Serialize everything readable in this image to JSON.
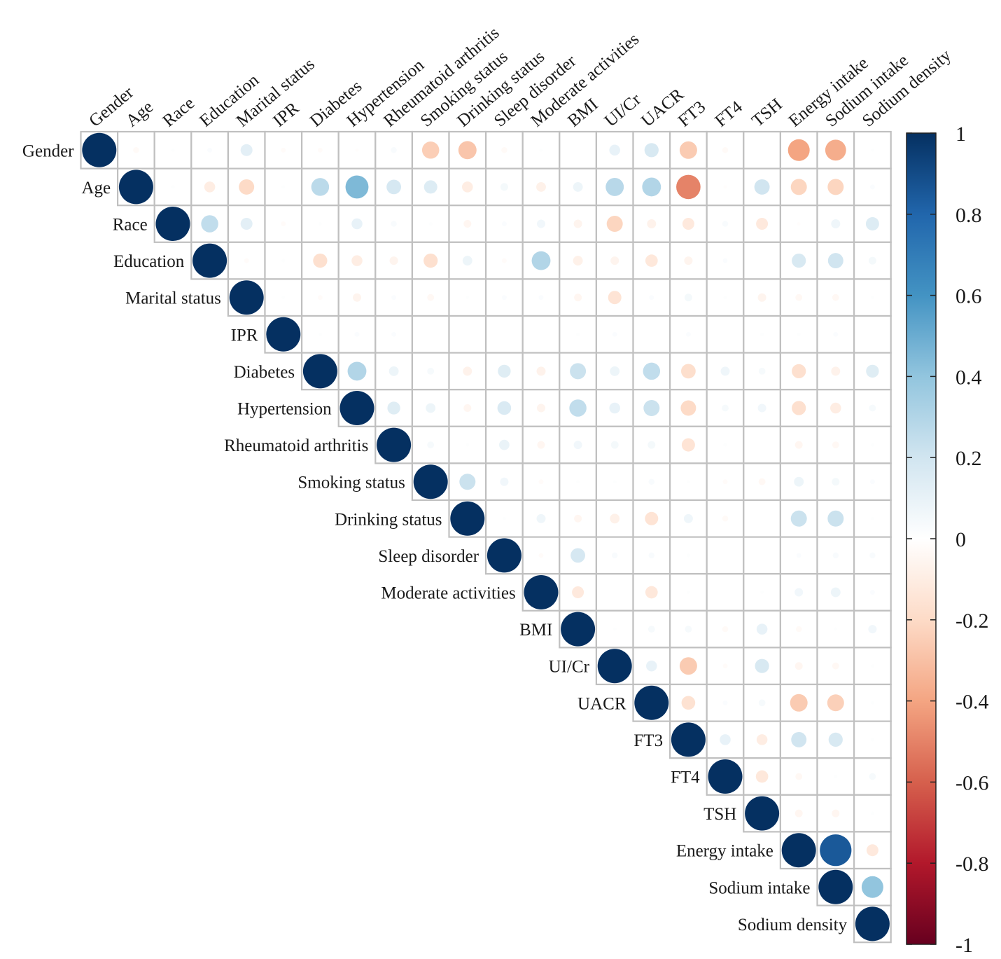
{
  "chart_data": {
    "type": "correlation-matrix",
    "shape": "upper-triangle-circles",
    "variables": [
      "Gender",
      "Age",
      "Race",
      "Education",
      "Marital status",
      "IPR",
      "Diabetes",
      "Hypertension",
      "Rheumatoid arthritis",
      "Smoking status",
      "Drinking status",
      "Sleep disorder",
      "Moderate activities",
      "BMI",
      "UI/Cr",
      "UACR",
      "FT3",
      "FT4",
      "TSH",
      "Energy intake",
      "Sodium intake",
      "Sodium density"
    ],
    "matrix": [
      [
        1,
        -0.03,
        0.01,
        0.02,
        0.12,
        -0.02,
        -0.02,
        -0.01,
        0.03,
        -0.25,
        -0.28,
        -0.03,
        0.01,
        0,
        0.1,
        0.17,
        -0.26,
        -0.03,
        0,
        -0.4,
        -0.37,
        0.01
      ],
      [
        -0.03,
        1,
        0.01,
        -0.1,
        -0.2,
        0.01,
        0.27,
        0.45,
        0.18,
        0.15,
        -0.1,
        0.05,
        -0.08,
        0.08,
        0.28,
        0.3,
        -0.5,
        -0.01,
        0.2,
        -0.22,
        -0.22,
        0.02
      ],
      [
        0.01,
        0.01,
        1,
        0.25,
        0.12,
        -0.02,
        0.01,
        0.1,
        0.03,
        0.01,
        -0.05,
        0.02,
        0.06,
        -0.06,
        -0.22,
        -0.07,
        -0.12,
        0.03,
        -0.12,
        -0.01,
        0.07,
        0.15
      ],
      [
        0.02,
        -0.1,
        0.25,
        1,
        -0.02,
        0.01,
        -0.17,
        -0.1,
        -0.06,
        -0.17,
        0.08,
        -0.02,
        0.3,
        -0.08,
        -0.06,
        -0.13,
        -0.06,
        0.02,
        0,
        0.17,
        0.2,
        0.05
      ],
      [
        0.12,
        -0.2,
        0.12,
        -0.02,
        1,
        0.01,
        -0.02,
        -0.06,
        0.02,
        -0.04,
        0.01,
        0.02,
        0.02,
        -0.05,
        -0.15,
        0.02,
        0.05,
        0.01,
        -0.06,
        -0.04,
        -0.04,
        0.01
      ],
      [
        -0.02,
        0.01,
        -0.02,
        0.01,
        0.01,
        1,
        0.01,
        0.02,
        0.02,
        0,
        0,
        0,
        0,
        0.01,
        0.02,
        0,
        0.02,
        0,
        0.01,
        0.01,
        0.02,
        0
      ],
      [
        -0.02,
        0.27,
        0.01,
        -0.17,
        -0.02,
        0.01,
        1,
        0.3,
        0.08,
        0.04,
        -0.07,
        0.14,
        -0.07,
        0.22,
        0.08,
        0.25,
        -0.18,
        0.07,
        0.04,
        -0.17,
        -0.07,
        0.14
      ],
      [
        -0.01,
        0.45,
        0.1,
        -0.1,
        -0.06,
        0.02,
        0.3,
        1,
        0.14,
        0.08,
        -0.05,
        0.16,
        -0.06,
        0.25,
        0.1,
        0.22,
        -0.2,
        0.04,
        0.06,
        -0.17,
        -0.1,
        0.04
      ],
      [
        0.03,
        0.18,
        0.03,
        -0.06,
        0.02,
        0.02,
        0.08,
        0.14,
        1,
        0.04,
        0.01,
        0.09,
        -0.05,
        0.06,
        0.05,
        0.05,
        -0.15,
        0.01,
        0,
        -0.05,
        -0.04,
        0.01
      ],
      [
        -0.25,
        0.15,
        0.01,
        -0.17,
        -0.04,
        0,
        0.04,
        0.08,
        0.04,
        1,
        0.22,
        0.06,
        -0.02,
        0.01,
        0.01,
        0.03,
        0.01,
        -0.02,
        -0.04,
        0.08,
        0.05,
        0.02
      ],
      [
        -0.28,
        -0.1,
        -0.05,
        0.08,
        0.01,
        0,
        -0.07,
        -0.05,
        0.01,
        0.22,
        1,
        0.01,
        0.07,
        -0.05,
        -0.08,
        -0.15,
        0.07,
        -0.03,
        0,
        0.22,
        0.22,
        0.01
      ],
      [
        -0.03,
        0.05,
        0.02,
        -0.02,
        0.02,
        0,
        0.14,
        0.16,
        0.09,
        0.06,
        0.01,
        1,
        -0.02,
        0.18,
        0.03,
        0.03,
        0.01,
        0,
        0,
        0.02,
        0.03,
        0.03
      ],
      [
        0.01,
        -0.08,
        0.06,
        0.3,
        0.02,
        0,
        -0.07,
        -0.06,
        -0.05,
        -0.02,
        0.07,
        -0.02,
        1,
        -0.12,
        0,
        -0.13,
        0.01,
        0,
        0.01,
        0.06,
        0.08,
        0.02
      ],
      [
        0,
        0.08,
        -0.06,
        -0.08,
        -0.05,
        0.01,
        0.22,
        0.25,
        0.06,
        0.01,
        -0.05,
        0.18,
        -0.12,
        1,
        0.01,
        0.04,
        0.04,
        -0.03,
        0.1,
        -0.03,
        0.01,
        0.06
      ],
      [
        0.1,
        0.28,
        -0.22,
        -0.06,
        -0.15,
        0.02,
        0.08,
        0.1,
        0.05,
        0.01,
        -0.08,
        0.03,
        0,
        0.01,
        1,
        0.1,
        -0.26,
        -0.02,
        0.17,
        -0.05,
        -0.04,
        0.01
      ],
      [
        0.17,
        0.3,
        -0.07,
        -0.13,
        0.02,
        0,
        0.25,
        0.22,
        0.05,
        0.03,
        -0.15,
        0.03,
        -0.13,
        0.04,
        0.1,
        1,
        -0.16,
        0.02,
        0.04,
        -0.26,
        -0.24,
        0.01
      ],
      [
        -0.26,
        -0.5,
        -0.12,
        -0.06,
        0.05,
        0.02,
        -0.18,
        -0.2,
        -0.15,
        0.01,
        0.07,
        0.01,
        0.01,
        0.04,
        -0.26,
        -0.16,
        1,
        0.1,
        -0.1,
        0.2,
        0.17,
        0.01
      ],
      [
        -0.03,
        -0.01,
        0.03,
        0.02,
        0.01,
        0,
        0.07,
        0.04,
        0.01,
        -0.02,
        -0.03,
        0,
        0,
        -0.03,
        -0.02,
        0.02,
        0.1,
        1,
        -0.13,
        -0.04,
        0.01,
        0.04
      ],
      [
        0,
        0.2,
        -0.12,
        0,
        -0.06,
        0.01,
        0.04,
        0.06,
        0,
        -0.04,
        0,
        0,
        0.01,
        0.1,
        0.17,
        0.04,
        -0.1,
        -0.13,
        1,
        -0.05,
        -0.05,
        0.01
      ],
      [
        -0.4,
        -0.22,
        -0.01,
        0.17,
        -0.04,
        0.01,
        -0.17,
        -0.17,
        -0.05,
        0.08,
        0.22,
        0.02,
        0.06,
        -0.03,
        -0.05,
        -0.26,
        0.2,
        -0.04,
        -0.05,
        1,
        0.85,
        -0.12
      ],
      [
        -0.37,
        -0.22,
        0.07,
        0.2,
        -0.04,
        0.02,
        -0.07,
        -0.1,
        -0.04,
        0.05,
        0.22,
        0.03,
        0.08,
        0.01,
        -0.04,
        -0.24,
        0.17,
        0.01,
        -0.05,
        0.85,
        1,
        0.4
      ],
      [
        0.01,
        0.02,
        0.15,
        0.05,
        0.01,
        0,
        0.14,
        0.04,
        0.01,
        0.02,
        0.01,
        0.03,
        0.02,
        0.06,
        0.01,
        0.01,
        0.01,
        0.04,
        0.01,
        -0.12,
        0.4,
        1
      ]
    ],
    "colorbar": {
      "min": -1,
      "max": 1,
      "ticks": [
        1,
        0.8,
        0.6,
        0.4,
        0.2,
        0,
        -0.2,
        -0.4,
        -0.6,
        -0.8,
        -1
      ],
      "tick_labels": [
        "1",
        "0.8",
        "0.6",
        "0.4",
        "0.2",
        "0",
        "-0.2",
        "-0.4",
        "-0.6",
        "-0.8",
        "-1"
      ],
      "palette": [
        "#67001f",
        "#b2182b",
        "#d6604d",
        "#f4a582",
        "#fddbc7",
        "#ffffff",
        "#d1e5f0",
        "#92c5de",
        "#4393c3",
        "#2166ac",
        "#053061"
      ]
    },
    "grid_color": "#c0c0c0"
  }
}
